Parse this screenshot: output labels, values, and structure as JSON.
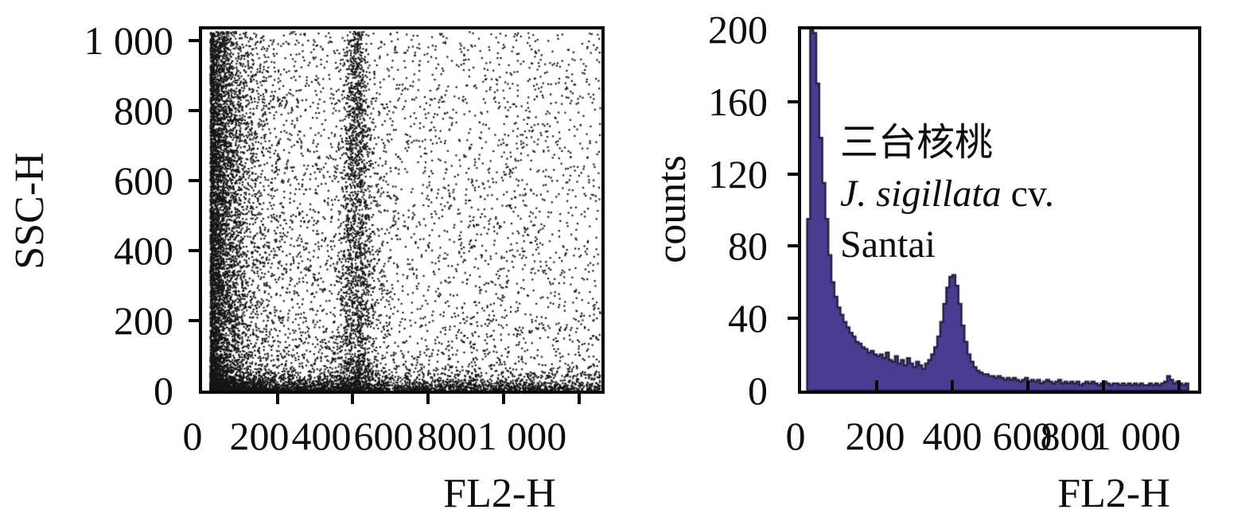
{
  "figure": {
    "background": "#ffffff",
    "text_color": "#0d0d0d",
    "frame_color": "#0a0a0a"
  },
  "chart_data": [
    {
      "type": "scatter",
      "panel": "left",
      "xlabel": "FL2-H",
      "ylabel": "SSC-H",
      "xlim": [
        0,
        1060
      ],
      "ylim": [
        0,
        1032
      ],
      "xticks": [
        0,
        200,
        400,
        600,
        800,
        1000
      ],
      "xtick_labels": [
        "0",
        "200",
        "400",
        "600",
        "800",
        "1 000"
      ],
      "yticks": [
        0,
        200,
        400,
        600,
        800,
        1000
      ],
      "ytick_labels": [
        "0",
        "200",
        "400",
        "600",
        "800",
        "1 000"
      ],
      "grid": false,
      "point_color": "#161616",
      "point_size": 2.2,
      "description": "Flow-cytometry dot plot of ~14000 events: dense black band at low FL2-H (20-100), dense strip along bottom (SSC-H<60), vertical G1 streak near FL2-H 400 widening toward bottom, diffuse scatter thinning toward upper right.",
      "generator": {
        "seed": 1337,
        "components": [
          {
            "name": "left-band",
            "n": 4600,
            "x": {
              "dist": "exp",
              "min": 20,
              "mean": 42,
              "max": 1055
            },
            "y": {
              "dist": "uniform",
              "min": 2,
              "max": 1028
            }
          },
          {
            "name": "bottom-band",
            "n": 3000,
            "x": {
              "dist": "power",
              "min": 20,
              "max": 1055,
              "k": 1.9
            },
            "y": {
              "dist": "exp",
              "min": 2,
              "mean": 20,
              "max": 1028
            }
          },
          {
            "name": "g1-streak",
            "n": 1900,
            "x": {
              "dist": "normal",
              "mean": 408,
              "sd_top": 13,
              "sd_bottom": 36
            },
            "y": {
              "dist": "power",
              "min": 2,
              "max": 1028,
              "k": 1.25
            }
          },
          {
            "name": "diffuse",
            "n": 4200,
            "x": {
              "dist": "power",
              "min": 20,
              "max": 1055,
              "k": 1.8
            },
            "y": {
              "dist": "power",
              "min": 2,
              "max": 1028,
              "k": 1.35
            }
          },
          {
            "name": "uniform-sprinkle",
            "n": 800,
            "x": {
              "dist": "uniform",
              "min": 20,
              "max": 1055
            },
            "y": {
              "dist": "uniform",
              "min": 2,
              "max": 1028
            }
          }
        ]
      }
    },
    {
      "type": "area",
      "panel": "right",
      "xlabel": "FL2-H",
      "ylabel": "counts",
      "xlim": [
        0,
        1050
      ],
      "ylim": [
        0,
        200
      ],
      "xticks": [
        0,
        200,
        400,
        600,
        800,
        1000
      ],
      "xtick_labels": [
        "0",
        "200",
        "400",
        "600",
        "800",
        "1 000"
      ],
      "yticks": [
        0,
        40,
        80,
        120,
        160,
        200
      ],
      "ytick_labels": [
        "0",
        "40",
        "80",
        "120",
        "160",
        "200"
      ],
      "grid": false,
      "fill": "#4a3c90",
      "edge": "#262046",
      "bin_width": 8,
      "bin_start": 0,
      "note": "first debris peak clipped at 200 counts; G1 peak ~64 counts at FL2-H ~400",
      "counts": [
        0,
        0,
        95,
        200,
        198,
        170,
        140,
        115,
        95,
        75,
        60,
        52,
        46,
        42,
        38,
        35,
        32,
        30,
        27,
        26,
        24,
        23,
        21,
        22,
        20,
        19,
        20,
        18,
        21,
        17,
        16,
        19,
        15,
        17,
        14,
        18,
        15,
        13,
        16,
        14,
        12,
        15,
        17,
        20,
        24,
        30,
        38,
        48,
        57,
        63,
        64,
        58,
        48,
        36,
        27,
        20,
        16,
        13,
        11,
        10,
        9,
        9,
        8,
        8,
        7,
        8,
        7,
        6,
        7,
        6,
        7,
        6,
        5,
        6,
        7,
        5,
        6,
        5,
        6,
        4,
        5,
        6,
        5,
        4,
        5,
        6,
        4,
        5,
        4,
        5,
        4,
        5,
        3,
        4,
        5,
        4,
        5,
        4,
        3,
        4,
        5,
        4,
        3,
        4,
        4,
        3,
        4,
        3,
        4,
        3,
        4,
        3,
        4,
        3,
        3,
        4,
        3,
        4,
        3,
        4,
        5,
        8,
        6,
        4,
        5,
        4,
        3,
        4
      ],
      "annotation": {
        "line1": "三台核桃",
        "line2_italic": "J. sigillata",
        "line2_roman": " cv.",
        "line3": "Santai"
      }
    }
  ]
}
